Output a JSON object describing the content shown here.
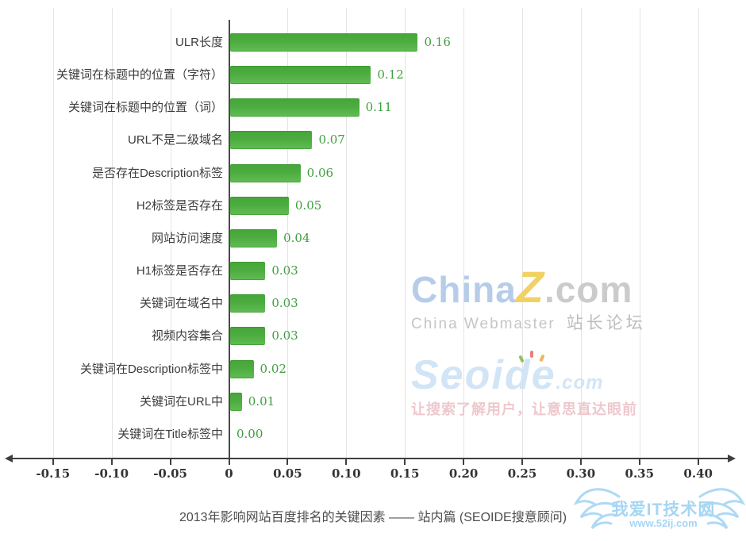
{
  "chart_data": {
    "type": "bar",
    "orientation": "horizontal",
    "title": "2013年影响网站百度排名的关键因素 —— 站内篇 (SEOIDE搜意顾问)",
    "categories": [
      "ULR长度",
      "关键词在标题中的位置（字符）",
      "关键词在标题中的位置（词）",
      "URL不是二级域名",
      "是否存在Description标签",
      "H2标签是否存在",
      "网站访问速度",
      "H1标签是否存在",
      "关键词在域名中",
      "视频内容集合",
      "关键词在Description标签中",
      "关键词在URL中",
      "关键词在Title标签中"
    ],
    "values": [
      0.16,
      0.12,
      0.11,
      0.07,
      0.06,
      0.05,
      0.04,
      0.03,
      0.03,
      0.03,
      0.02,
      0.01,
      0.0
    ],
    "value_labels": [
      "0.16",
      "0.12",
      "0.11",
      "0.07",
      "0.06",
      "0.05",
      "0.04",
      "0.03",
      "0.03",
      "0.03",
      "0.02",
      "0.01",
      "0.00"
    ],
    "x_tick_values": [
      -0.15,
      -0.1,
      -0.05,
      0,
      0.05,
      0.1,
      0.15,
      0.2,
      0.25,
      0.3,
      0.35,
      0.4
    ],
    "x_tick_labels": [
      "-0.15",
      "-0.10",
      "-0.05",
      "0",
      "0.05",
      "0.10",
      "0.15",
      "0.20",
      "0.25",
      "0.30",
      "0.35",
      "0.40"
    ],
    "xlim": [
      -0.185,
      0.425
    ],
    "grid": true,
    "legend": "none",
    "bar_color": "#4dac40",
    "value_label_color": "#3e9e3e"
  },
  "caption": "2013年影响网站百度排名的关键因素 —— 站内篇 (SEOIDE搜意顾问)",
  "watermarks": {
    "chinaz": {
      "part1": "China",
      "part2": "Z",
      "part3": ".com",
      "subtitle_en": "China Webmaster",
      "subtitle_cn": "站长论坛"
    },
    "seoide": {
      "brand": "Seoide",
      "suffix": ".com",
      "tagline": "让搜索了解用户，让意思直达眼前"
    },
    "itweb": {
      "name": "我爱IT技术网",
      "url": "www.52ij.com"
    }
  }
}
